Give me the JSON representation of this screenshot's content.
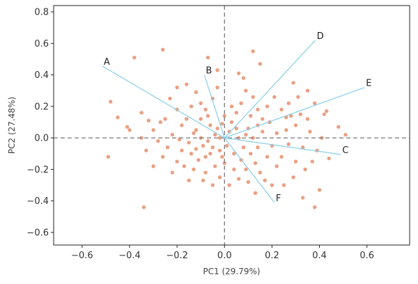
{
  "chart_data": {
    "type": "scatter",
    "xlabel": "PC1 (29.79%)",
    "ylabel": "PC2 (27.48%)",
    "xlim": [
      -0.72,
      0.78
    ],
    "ylim": [
      -0.68,
      0.84
    ],
    "xticks": [
      "−0.6",
      "−0.4",
      "−0.2",
      "0.0",
      "0.2",
      "0.4",
      "0.6"
    ],
    "xtick_values": [
      -0.6,
      -0.4,
      -0.2,
      0,
      0.2,
      0.4,
      0.6
    ],
    "yticks": [
      "0.8",
      "0.6",
      "0.4",
      "0.2",
      "0.0",
      "−0.2",
      "−0.4",
      "−0.6"
    ],
    "ytick_values": [
      0.8,
      0.6,
      0.4,
      0.2,
      0,
      -0.2,
      -0.4,
      -0.6
    ],
    "grid": false,
    "point_color": "#E9A083",
    "loading_color": "#87CEEB",
    "loadings": [
      {
        "name": "A",
        "x": -0.515,
        "y": 0.456
      },
      {
        "name": "B",
        "x": -0.085,
        "y": 0.4
      },
      {
        "name": "D",
        "x": 0.383,
        "y": 0.62
      },
      {
        "name": "E",
        "x": 0.59,
        "y": 0.32
      },
      {
        "name": "C",
        "x": 0.49,
        "y": -0.105
      },
      {
        "name": "F",
        "x": 0.21,
        "y": -0.41
      }
    ],
    "points": [
      [
        -0.38,
        0.51
      ],
      [
        -0.26,
        0.56
      ],
      [
        -0.07,
        0.51
      ],
      [
        -0.48,
        0.23
      ],
      [
        -0.45,
        0.13
      ],
      [
        -0.35,
        0.16
      ],
      [
        -0.41,
        0.07
      ],
      [
        -0.49,
        -0.12
      ],
      [
        -0.34,
        -0.44
      ],
      [
        -0.4,
        0.05
      ],
      [
        0.51,
        0.02
      ],
      [
        0.48,
        0.07
      ],
      [
        0.42,
        0.15
      ],
      [
        0.38,
        -0.44
      ],
      [
        0.4,
        -0.33
      ],
      [
        0.33,
        -0.38
      ],
      [
        0.29,
        -0.25
      ],
      [
        0.26,
        0.13
      ],
      [
        0.35,
        0.3
      ],
      [
        0.29,
        0.35
      ],
      [
        0.12,
        0.55
      ],
      [
        0.15,
        0.47
      ],
      [
        0.06,
        0.41
      ],
      [
        -0.03,
        0.43
      ],
      [
        -0.2,
        0.32
      ],
      [
        -0.27,
        0.1
      ],
      [
        0.25,
        -0.3
      ],
      [
        0.44,
        -0.13
      ],
      [
        0.13,
        -0.35
      ],
      [
        -0.15,
        -0.27
      ],
      [
        0.43,
        0.17
      ],
      [
        0.32,
        0.15
      ],
      [
        -0.16,
        0.34
      ],
      [
        -0.12,
        0.29
      ],
      [
        -0.14,
        0.2
      ],
      [
        -0.2,
        0.18
      ],
      [
        -0.25,
        0.12
      ],
      [
        -0.18,
        0.08
      ],
      [
        -0.22,
        0.02
      ],
      [
        -0.3,
        0.05
      ],
      [
        -0.28,
        -0.02
      ],
      [
        -0.24,
        -0.06
      ],
      [
        -0.26,
        -0.12
      ],
      [
        -0.2,
        -0.15
      ],
      [
        -0.18,
        -0.08
      ],
      [
        -0.15,
        -0.03
      ],
      [
        -0.12,
        0.05
      ],
      [
        -0.1,
        0.12
      ],
      [
        -0.08,
        0.18
      ],
      [
        -0.05,
        0.25
      ],
      [
        -0.03,
        0.32
      ],
      [
        -0.06,
        0.08
      ],
      [
        -0.04,
        0.02
      ],
      [
        -0.09,
        -0.05
      ],
      [
        -0.06,
        -0.1
      ],
      [
        -0.11,
        -0.14
      ],
      [
        -0.13,
        -0.2
      ],
      [
        -0.08,
        -0.22
      ],
      [
        -0.04,
        -0.18
      ],
      [
        -0.02,
        -0.25
      ],
      [
        -0.05,
        -0.3
      ],
      [
        -0.01,
        -0.12
      ],
      [
        0.01,
        -0.05
      ],
      [
        0.02,
        0.04
      ],
      [
        0.03,
        0.1
      ],
      [
        0.05,
        0.16
      ],
      [
        0.07,
        0.22
      ],
      [
        0.09,
        0.3
      ],
      [
        0.08,
        0.38
      ],
      [
        0.12,
        0.26
      ],
      [
        0.14,
        0.18
      ],
      [
        0.16,
        0.12
      ],
      [
        0.1,
        0.06
      ],
      [
        0.06,
        0.0
      ],
      [
        0.08,
        -0.06
      ],
      [
        0.11,
        -0.1
      ],
      [
        0.13,
        -0.16
      ],
      [
        0.09,
        -0.2
      ],
      [
        0.06,
        -0.26
      ],
      [
        0.15,
        -0.22
      ],
      [
        0.18,
        -0.12
      ],
      [
        0.2,
        -0.05
      ],
      [
        0.22,
        0.03
      ],
      [
        0.19,
        0.1
      ],
      [
        0.24,
        0.18
      ],
      [
        0.21,
        0.26
      ],
      [
        0.27,
        0.22
      ],
      [
        0.3,
        0.08
      ],
      [
        0.27,
        -0.04
      ],
      [
        0.24,
        -0.12
      ],
      [
        0.3,
        -0.15
      ],
      [
        0.33,
        -0.06
      ],
      [
        0.36,
        0.04
      ],
      [
        0.35,
        0.12
      ],
      [
        0.38,
        0.22
      ],
      [
        0.31,
        0.26
      ],
      [
        0.34,
        -0.2
      ],
      [
        0.2,
        -0.3
      ],
      [
        0.17,
        -0.27
      ],
      [
        0.04,
        -0.2
      ],
      [
        -0.02,
        -0.08
      ],
      [
        -0.07,
        -0.02
      ],
      [
        -0.03,
        0.06
      ],
      [
        0.0,
        0.14
      ],
      [
        -0.1,
        0.0
      ],
      [
        -0.14,
        -0.1
      ],
      [
        -0.17,
        -0.18
      ],
      [
        -0.22,
        -0.22
      ],
      [
        -0.3,
        -0.18
      ],
      [
        -0.33,
        -0.08
      ],
      [
        -0.35,
        0.0
      ],
      [
        -0.32,
        0.11
      ],
      [
        -0.23,
        0.25
      ],
      [
        -0.1,
        0.22
      ],
      [
        0.04,
        -0.1
      ],
      [
        0.07,
        -0.14
      ],
      [
        0.12,
        0.0
      ],
      [
        0.16,
        0.04
      ],
      [
        0.14,
        -0.06
      ],
      [
        0.0,
        -0.16
      ],
      [
        -0.05,
        -0.06
      ],
      [
        -0.12,
        -0.07
      ],
      [
        -0.19,
        -0.01
      ],
      [
        -0.16,
        0.12
      ],
      [
        -0.07,
        0.14
      ],
      [
        0.03,
        0.2
      ],
      [
        0.11,
        0.14
      ],
      [
        0.18,
        0.2
      ],
      [
        0.22,
        -0.18
      ],
      [
        0.1,
        -0.28
      ],
      [
        0.02,
        -0.3
      ],
      [
        -0.09,
        -0.27
      ],
      [
        -0.02,
        0.0
      ],
      [
        0.05,
        0.06
      ],
      [
        -0.01,
        0.09
      ],
      [
        0.09,
        0.02
      ],
      [
        -0.13,
        0.03
      ],
      [
        -0.08,
        -0.12
      ],
      [
        0.14,
        0.08
      ],
      [
        0.26,
        0.05
      ],
      [
        0.28,
        0.14
      ],
      [
        0.39,
        -0.08
      ],
      [
        0.41,
        0.0
      ],
      [
        0.37,
        -0.15
      ]
    ]
  }
}
